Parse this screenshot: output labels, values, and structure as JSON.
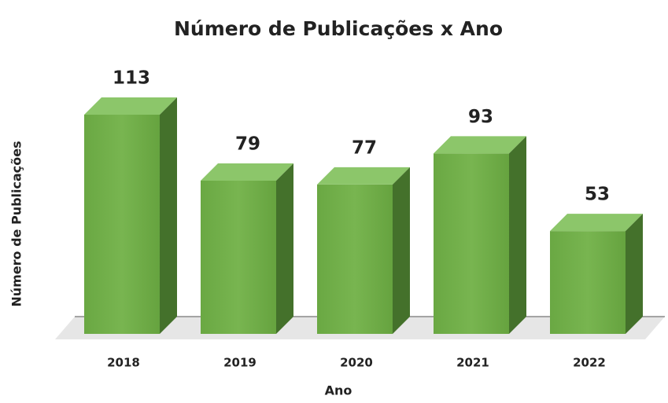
{
  "chart_data": {
    "type": "bar3d",
    "title": "Número de Publicações x Ano",
    "x_label": "Ano",
    "y_label": "Número de Publicações",
    "categories": [
      "2018",
      "2019",
      "2020",
      "2021",
      "2022"
    ],
    "values": [
      113,
      79,
      77,
      93,
      53
    ],
    "color": "#70ad47"
  }
}
